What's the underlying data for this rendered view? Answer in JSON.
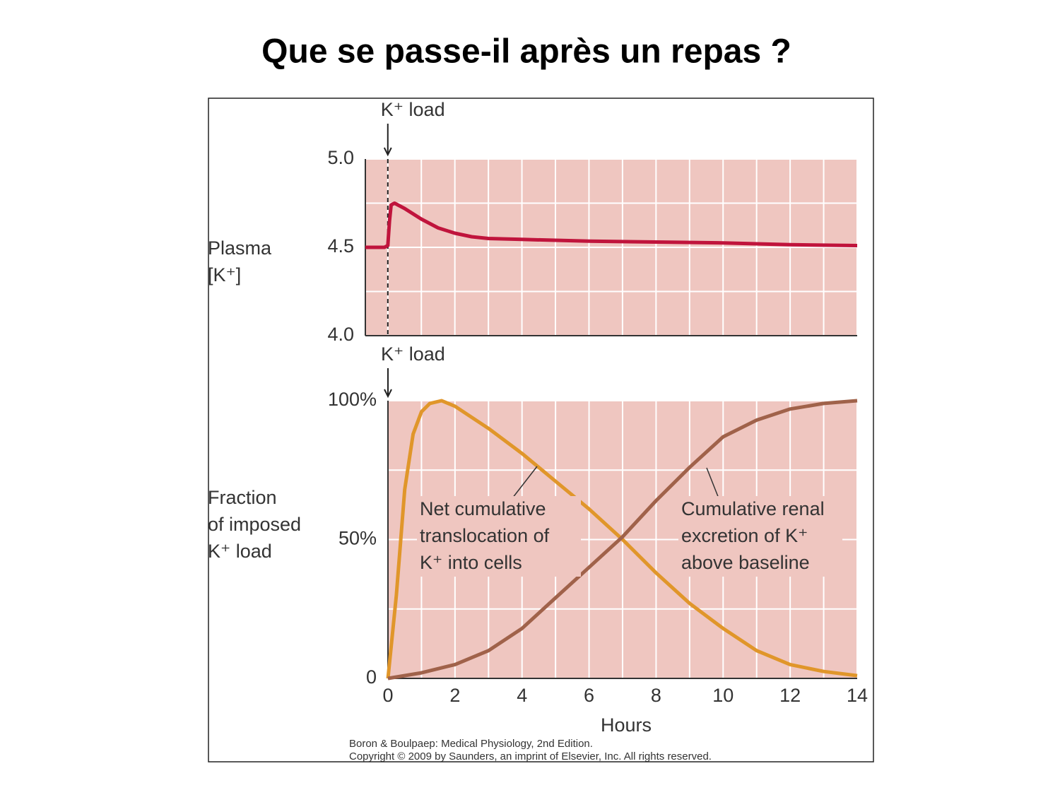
{
  "title": "Que se passe-il après un repas ?",
  "credits": [
    "Boron & Boulpaep: Medical Physiology, 2nd Edition.",
    "Copyright © 2009 by Saunders, an imprint of Elsevier, Inc. All rights reserved."
  ],
  "chart_data": [
    {
      "type": "line",
      "ylabel": [
        "Plasma",
        "[K⁺]"
      ],
      "annotations": [
        [
          "K⁺ load"
        ]
      ],
      "xlim": [
        -0.67,
        14
      ],
      "ylim": [
        4,
        5
      ],
      "yticks": [
        {
          "value": 4,
          "label": "4.0"
        },
        4.5,
        {
          "value": 5,
          "label": "5.0"
        }
      ],
      "grid": true,
      "background": "#efc6c0",
      "series": [
        {
          "color": "#c0143c",
          "x": [
            -0.67,
            -0.1,
            0,
            0.05,
            0.1,
            0.2,
            0.5,
            1,
            1.5,
            2,
            2.5,
            3,
            4,
            6,
            8,
            10,
            12,
            14
          ],
          "values": [
            4.5,
            4.5,
            4.51,
            4.65,
            4.74,
            4.75,
            4.72,
            4.66,
            4.61,
            4.58,
            4.56,
            4.55,
            4.545,
            4.535,
            4.53,
            4.525,
            4.515,
            4.51
          ]
        }
      ]
    },
    {
      "type": "line",
      "ylabel": [
        "Fraction",
        "of imposed",
        "K⁺ load"
      ],
      "xlabel": "Hours",
      "annotations": [
        [
          "K⁺ load"
        ],
        [
          "Net cumulative",
          "translocation of",
          "K⁺ into cells"
        ],
        [
          "Cumulative renal",
          "excretion of K⁺",
          "above baseline"
        ]
      ],
      "xlim": [
        0,
        14
      ],
      "ylim": [
        0,
        100
      ],
      "xticks": [
        0,
        2,
        4,
        6,
        8,
        10,
        12,
        14
      ],
      "yticks": [
        0,
        {
          "value": 50,
          "label": "50%"
        },
        {
          "value": 100,
          "label": "100%"
        }
      ],
      "grid": true,
      "background": "#efc6c0",
      "series": [
        {
          "color": "#e0962a",
          "x": [
            0,
            0.25,
            0.5,
            0.75,
            1,
            1.25,
            1.6,
            2,
            3,
            4,
            5,
            6,
            7,
            8,
            9,
            10,
            11,
            12,
            13,
            14
          ],
          "values": [
            0,
            30,
            68,
            88,
            96,
            99,
            100,
            98,
            90,
            81,
            71,
            61,
            50,
            38,
            27,
            18,
            10,
            5,
            2.5,
            1
          ]
        },
        {
          "color": "#a0624a",
          "x": [
            0,
            1,
            2,
            3,
            4,
            5,
            6,
            7,
            8,
            9,
            10,
            11,
            12,
            13,
            14
          ],
          "values": [
            0,
            2,
            5,
            10,
            18,
            29,
            40,
            51,
            64,
            76,
            87,
            93,
            97,
            99,
            100
          ]
        }
      ]
    }
  ]
}
